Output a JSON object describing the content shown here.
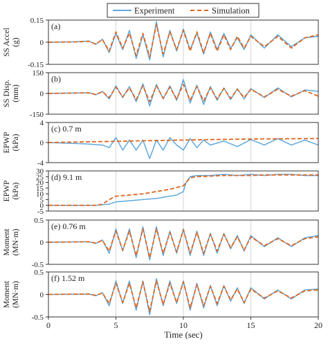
{
  "colors": {
    "experiment": "#5fa8dd",
    "simulation": "#e0661f",
    "grid": "#d6d6d6",
    "frame": "#333333"
  },
  "legend": {
    "experiment_label": "Experiment",
    "simulation_label": "Simulation"
  },
  "x_axis": {
    "label": "Time (sec)",
    "ticks": [
      "0",
      "5",
      "10",
      "15",
      "20"
    ],
    "range": [
      0,
      20
    ]
  },
  "chart_data": [
    {
      "type": "line",
      "panel": "(a)",
      "annotation": "",
      "ylabel_lines": [
        "SS Accel",
        "(g)"
      ],
      "ylim": [
        -0.15,
        0.15
      ],
      "yticks": [
        "0.15",
        "0",
        "-0.15"
      ],
      "ytick_values": [
        0.15,
        0,
        -0.15
      ],
      "series": [
        {
          "name": "Experiment",
          "x": [
            0,
            2,
            3,
            3.5,
            4,
            4.5,
            5,
            5.5,
            6,
            6.5,
            7,
            7.5,
            8,
            8.5,
            9,
            9.5,
            10,
            10.5,
            11,
            11.5,
            12,
            12.5,
            13,
            13.5,
            14,
            14.5,
            15,
            16,
            17,
            18,
            19,
            20
          ],
          "y": [
            0,
            0.003,
            0.008,
            -0.015,
            0.02,
            -0.07,
            0.06,
            -0.05,
            0.08,
            -0.11,
            0.05,
            -0.12,
            0.14,
            -0.1,
            0.08,
            -0.06,
            0.09,
            -0.05,
            0.06,
            -0.08,
            0.07,
            -0.05,
            0.06,
            -0.04,
            0.03,
            -0.05,
            0.05,
            -0.04,
            0.05,
            -0.03,
            0.03,
            0.04
          ]
        },
        {
          "name": "Simulation",
          "x": [
            0,
            2,
            3,
            3.5,
            4,
            4.5,
            5,
            5.5,
            6,
            6.5,
            7,
            7.5,
            8,
            8.5,
            9,
            9.5,
            10,
            10.5,
            11,
            11.5,
            12,
            12.5,
            13,
            13.5,
            14,
            14.5,
            15,
            16,
            17,
            18,
            19,
            20
          ],
          "y": [
            0,
            0.002,
            0.006,
            -0.012,
            0.018,
            -0.06,
            0.07,
            -0.04,
            0.06,
            -0.09,
            0.06,
            -0.1,
            0.12,
            -0.08,
            0.07,
            -0.05,
            0.08,
            -0.06,
            0.07,
            -0.07,
            0.06,
            -0.06,
            0.05,
            -0.05,
            0.04,
            -0.04,
            0.04,
            -0.03,
            0.04,
            -0.04,
            0.03,
            0.05
          ]
        }
      ]
    },
    {
      "type": "line",
      "panel": "(b)",
      "annotation": "",
      "ylabel_lines": [
        "SS Disp.",
        "(mm)"
      ],
      "ylim": [
        -150,
        150
      ],
      "yticks": [
        "150",
        "0",
        "-150"
      ],
      "ytick_values": [
        150,
        0,
        -150
      ],
      "series": [
        {
          "name": "Experiment",
          "x": [
            0,
            3,
            3.5,
            4,
            4.5,
            5,
            5.5,
            6,
            6.5,
            7,
            7.5,
            8,
            8.5,
            9,
            9.5,
            10,
            10.5,
            11,
            11.5,
            12,
            12.5,
            13,
            13.5,
            14,
            14.5,
            15,
            16,
            17,
            18,
            19,
            20
          ],
          "y": [
            0,
            5,
            -10,
            15,
            -40,
            55,
            -30,
            50,
            -60,
            70,
            -90,
            65,
            -40,
            55,
            -50,
            100,
            -70,
            60,
            -80,
            50,
            -50,
            40,
            -45,
            35,
            -40,
            35,
            -30,
            40,
            -25,
            25,
            15
          ]
        },
        {
          "name": "Simulation",
          "x": [
            0,
            3,
            3.5,
            4,
            4.5,
            5,
            5.5,
            6,
            6.5,
            7,
            7.5,
            8,
            8.5,
            9,
            9.5,
            10,
            10.5,
            11,
            11.5,
            12,
            12.5,
            13,
            13.5,
            14,
            14.5,
            15,
            16,
            17,
            18,
            19,
            20
          ],
          "y": [
            0,
            4,
            -8,
            12,
            -30,
            45,
            -25,
            40,
            -45,
            55,
            -60,
            55,
            -35,
            45,
            -40,
            65,
            -50,
            50,
            -55,
            40,
            -40,
            35,
            -35,
            30,
            -30,
            30,
            -25,
            30,
            -20,
            20,
            -20
          ]
        }
      ]
    },
    {
      "type": "line",
      "panel": "(c)",
      "annotation": "0.7 m",
      "ylabel_lines": [
        "EPWP",
        "(kPa)"
      ],
      "ylim": [
        -4,
        4
      ],
      "yticks": [
        "4",
        "0",
        "-4"
      ],
      "ytick_values": [
        4,
        0,
        -4
      ],
      "series": [
        {
          "name": "Experiment",
          "x": [
            0,
            2,
            3,
            4,
            4.5,
            5,
            5.5,
            6,
            6.5,
            7,
            7.5,
            8,
            8.5,
            9,
            9.5,
            10,
            10.5,
            11,
            11.5,
            12,
            13,
            14,
            15,
            16,
            17,
            18,
            19,
            20
          ],
          "y": [
            0,
            -0.2,
            -0.3,
            -0.5,
            -1,
            1,
            -1.5,
            0.5,
            -1.5,
            0.5,
            -3.2,
            0.5,
            -1.5,
            1,
            -0.5,
            -1.5,
            0.8,
            -1,
            0.5,
            -0.5,
            0.3,
            -0.8,
            0.6,
            -0.5,
            0.8,
            -0.5,
            0.5,
            -0.5
          ]
        },
        {
          "name": "Simulation",
          "x": [
            0,
            4,
            6,
            10,
            12,
            15,
            20
          ],
          "y": [
            0,
            0.2,
            0.3,
            0.5,
            0.6,
            0.7,
            0.8
          ]
        }
      ]
    },
    {
      "type": "line",
      "panel": "(d)",
      "annotation": "9.1 m",
      "ylabel_lines": [
        "EPWP",
        "(kPa)"
      ],
      "ylim": [
        -5,
        30
      ],
      "yticks": [
        "30",
        "25",
        "20",
        "15",
        "10",
        "5",
        "0",
        "-5"
      ],
      "ytick_values": [
        30,
        25,
        20,
        15,
        10,
        5,
        0,
        -5
      ],
      "series": [
        {
          "name": "Experiment",
          "x": [
            0,
            3,
            3.5,
            4,
            4.5,
            5,
            6,
            7,
            8,
            9,
            9.5,
            10,
            10.2,
            10.5,
            11,
            12,
            13,
            14,
            15,
            16,
            17,
            18,
            19,
            20
          ],
          "y": [
            0,
            0,
            0,
            0.5,
            1,
            3,
            4,
            5,
            6,
            8,
            9,
            12,
            20,
            25,
            26,
            26,
            27,
            26,
            27,
            26,
            27,
            27,
            26,
            26
          ]
        },
        {
          "name": "Simulation",
          "x": [
            0,
            3,
            3.5,
            4,
            4.5,
            5,
            6,
            7,
            8,
            9,
            10,
            10.5,
            11,
            12,
            13,
            14,
            15,
            16,
            17,
            18,
            19,
            20
          ],
          "y": [
            0,
            0,
            0,
            1,
            5,
            8,
            9,
            10,
            12,
            14,
            17,
            24,
            25,
            25.5,
            26,
            26,
            26,
            26.5,
            26.5,
            26.5,
            26.5,
            26.5
          ]
        }
      ]
    },
    {
      "type": "line",
      "panel": "(e)",
      "annotation": "0.76 m",
      "ylabel_lines": [
        "Moment",
        "(MN·m)"
      ],
      "ylim": [
        -0.5,
        0.5
      ],
      "yticks": [
        "0.5",
        "0",
        "-0.5"
      ],
      "ytick_values": [
        0.5,
        0,
        -0.5
      ],
      "series": [
        {
          "name": "Experiment",
          "x": [
            0,
            3,
            3.5,
            4,
            4.5,
            5,
            5.5,
            6,
            6.5,
            7,
            7.5,
            8,
            8.5,
            9,
            9.5,
            10,
            10.5,
            11,
            11.5,
            12,
            12.5,
            13,
            13.5,
            14,
            14.5,
            15,
            16,
            17,
            18,
            19,
            20
          ],
          "y": [
            0,
            0.01,
            -0.03,
            0.05,
            -0.25,
            0.3,
            -0.2,
            0.3,
            -0.35,
            0.35,
            -0.4,
            0.35,
            -0.3,
            0.25,
            -0.25,
            0.3,
            -0.3,
            0.25,
            -0.3,
            0.2,
            -0.25,
            0.2,
            -0.15,
            0.15,
            -0.2,
            0.15,
            -0.1,
            0.1,
            -0.1,
            0.1,
            0.15
          ]
        },
        {
          "name": "Simulation",
          "x": [
            0,
            3,
            3.5,
            4,
            4.5,
            5,
            5.5,
            6,
            6.5,
            7,
            7.5,
            8,
            8.5,
            9,
            9.5,
            10,
            10.5,
            11,
            11.5,
            12,
            12.5,
            13,
            13.5,
            14,
            14.5,
            15,
            16,
            17,
            18,
            19,
            20
          ],
          "y": [
            0,
            0.01,
            -0.02,
            0.04,
            -0.2,
            0.25,
            -0.18,
            0.25,
            -0.3,
            0.3,
            -0.35,
            0.3,
            -0.25,
            0.22,
            -0.22,
            0.28,
            -0.25,
            0.22,
            -0.25,
            0.18,
            -0.2,
            0.18,
            -0.12,
            0.12,
            -0.18,
            0.12,
            -0.08,
            0.08,
            -0.08,
            0.08,
            0.12
          ]
        }
      ]
    },
    {
      "type": "line",
      "panel": "(f)",
      "annotation": "1.52 m",
      "ylabel_lines": [
        "Moment",
        "(MN·m)"
      ],
      "ylim": [
        -0.5,
        0.5
      ],
      "yticks": [
        "0.5",
        "0",
        "-0.5"
      ],
      "ytick_values": [
        0.5,
        0,
        -0.5
      ],
      "series": [
        {
          "name": "Experiment",
          "x": [
            0,
            3,
            3.5,
            4,
            4.5,
            5,
            5.5,
            6,
            6.5,
            7,
            7.5,
            8,
            8.5,
            9,
            9.5,
            10,
            10.5,
            11,
            11.5,
            12,
            12.5,
            13,
            13.5,
            14,
            14.5,
            15,
            16,
            17,
            18,
            19,
            20
          ],
          "y": [
            0,
            0.01,
            -0.03,
            0.04,
            -0.25,
            0.3,
            -0.2,
            0.3,
            -0.35,
            0.3,
            -0.45,
            0.35,
            -0.25,
            0.3,
            -0.2,
            0.3,
            -0.35,
            0.25,
            -0.3,
            0.2,
            -0.25,
            0.2,
            -0.15,
            0.15,
            -0.2,
            0.15,
            -0.1,
            0.1,
            -0.1,
            0.1,
            0.12
          ]
        },
        {
          "name": "Simulation",
          "x": [
            0,
            3,
            3.5,
            4,
            4.5,
            5,
            5.5,
            6,
            6.5,
            7,
            7.5,
            8,
            8.5,
            9,
            9.5,
            10,
            10.5,
            11,
            11.5,
            12,
            12.5,
            13,
            13.5,
            14,
            14.5,
            15,
            16,
            17,
            18,
            19,
            20
          ],
          "y": [
            0,
            0.01,
            -0.02,
            0.03,
            -0.2,
            0.25,
            -0.18,
            0.25,
            -0.3,
            0.28,
            -0.38,
            0.3,
            -0.22,
            0.25,
            -0.18,
            0.28,
            -0.3,
            0.22,
            -0.25,
            0.18,
            -0.2,
            0.18,
            -0.12,
            0.12,
            -0.18,
            0.12,
            -0.08,
            0.08,
            -0.08,
            0.08,
            0.1
          ]
        }
      ]
    }
  ]
}
